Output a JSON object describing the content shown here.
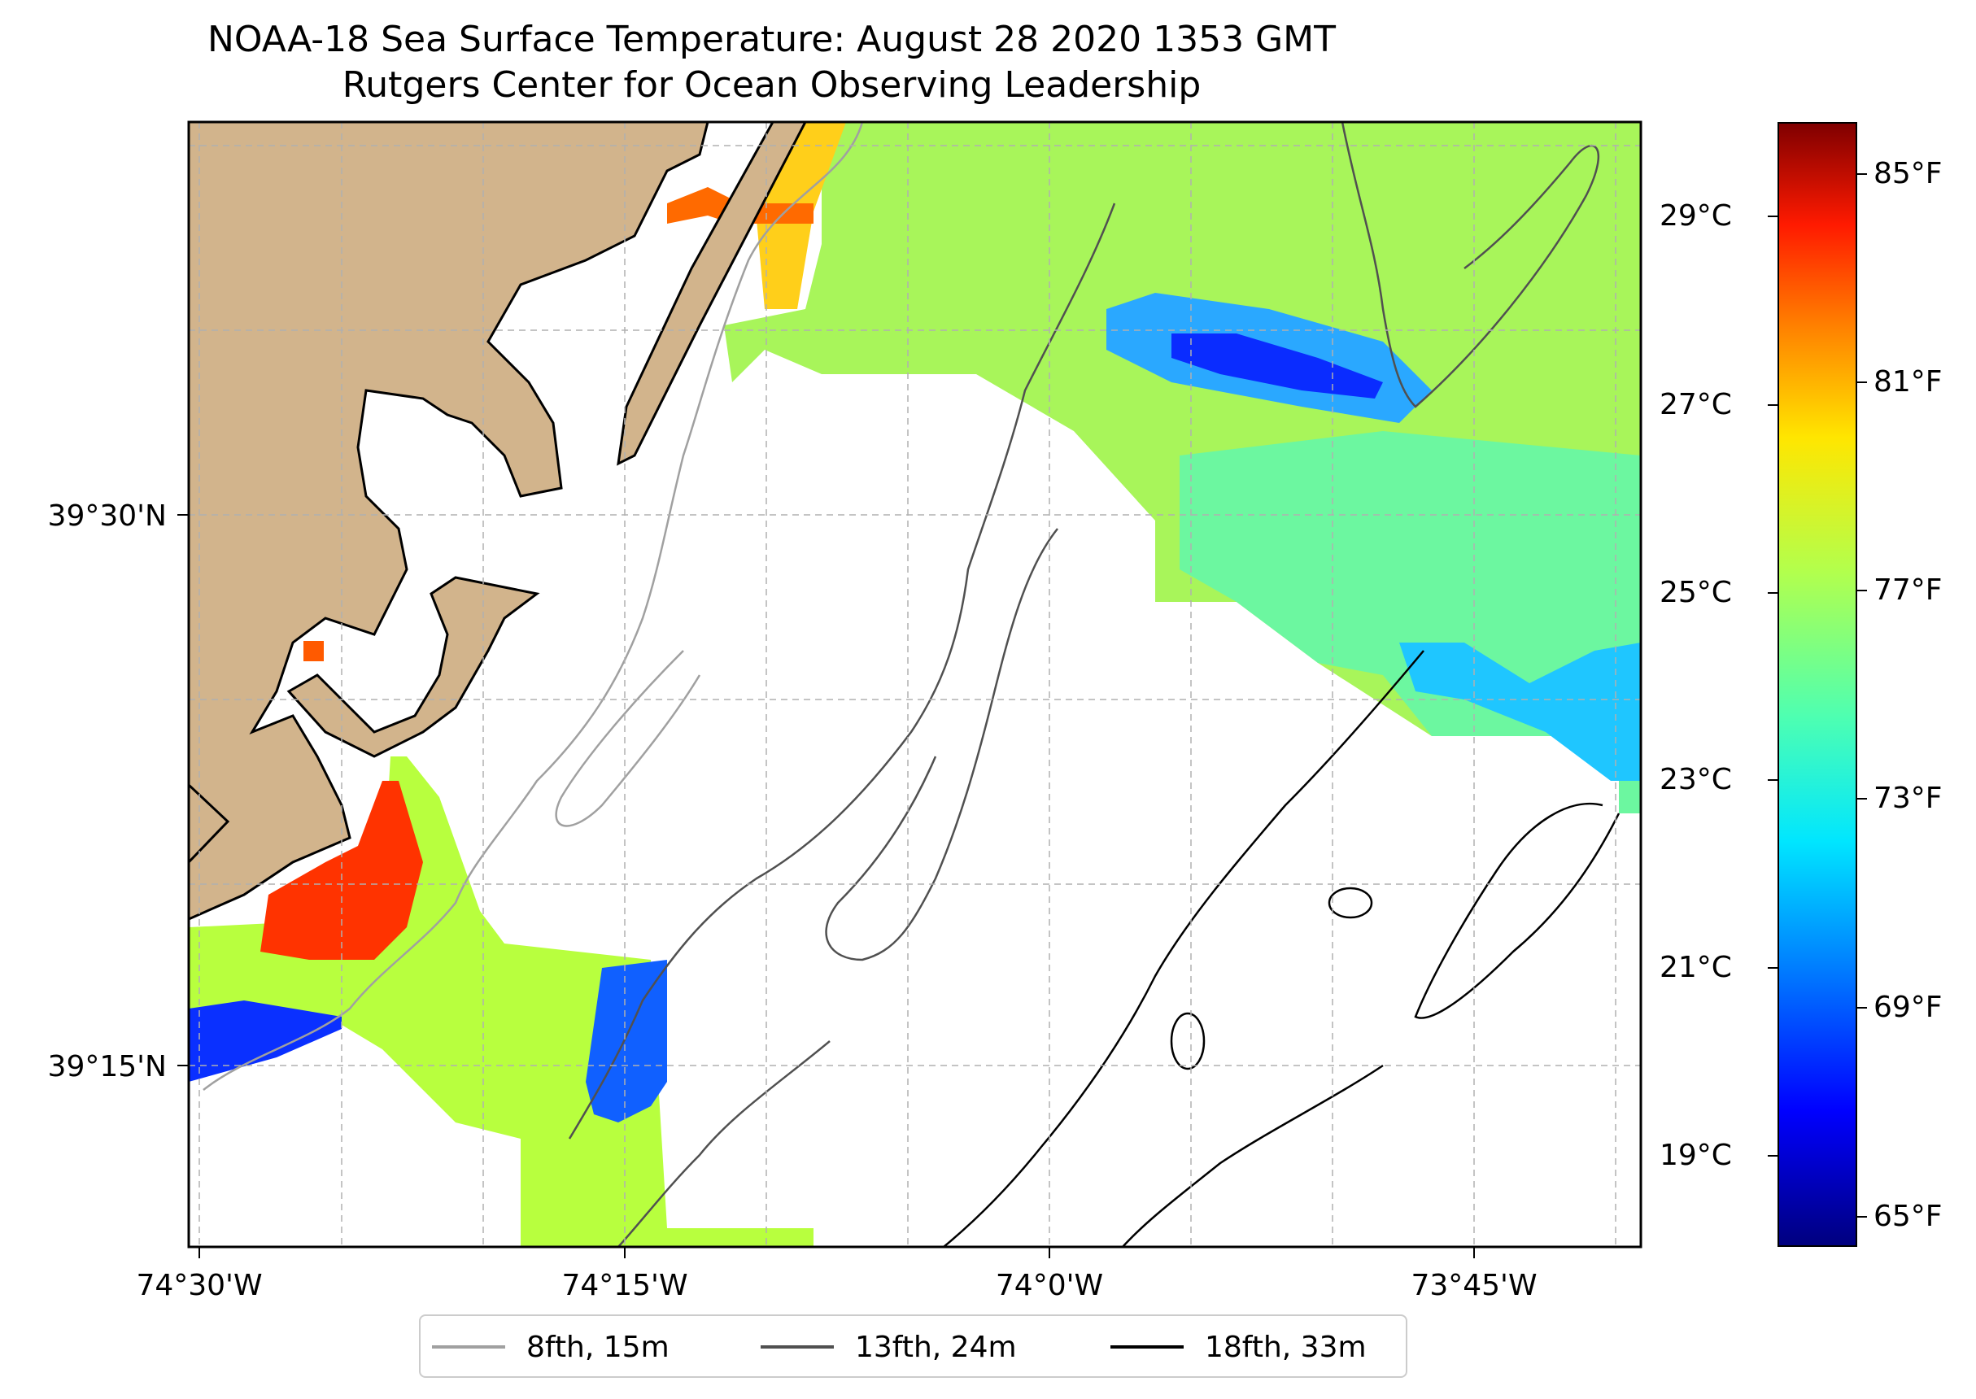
{
  "title": {
    "line1": "NOAA-18 Sea Surface Temperature: August 28 2020 1353 GMT",
    "line2": "Rutgers Center for Ocean Observing Leadership"
  },
  "map": {
    "lon_ticks": [
      "74°30'W",
      "74°15'W",
      "74°0'W",
      "73°45'W"
    ],
    "lat_ticks": [
      "39°30'N",
      "39°15'N"
    ],
    "land_color": "#d2b48c",
    "grid": true
  },
  "legend": {
    "items": [
      {
        "label": "8fth, 15m",
        "color": "#a0a0a0"
      },
      {
        "label": "13fth, 24m",
        "color": "#505050"
      },
      {
        "label": "18fth, 33m",
        "color": "#000000"
      }
    ]
  },
  "colorbar": {
    "celsius": [
      "29°C",
      "27°C",
      "25°C",
      "23°C",
      "21°C",
      "19°C"
    ],
    "fahrenheit": [
      "85°F",
      "81°F",
      "77°F",
      "73°F",
      "69°F",
      "65°F"
    ],
    "colormap": "jet"
  }
}
